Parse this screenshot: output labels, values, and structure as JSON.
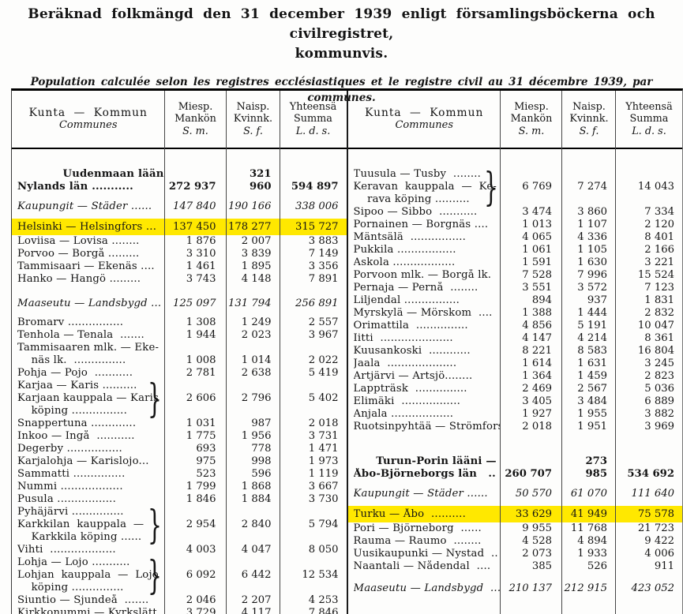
{
  "title": {
    "line1": "Beräknad folkmängd den 31 december 1939 enligt församlingsböckerna och civilregistret,",
    "line2": "kommunvis."
  },
  "subtitle": {
    "line1": "Population calculée selon les registres ecclésiastiques et le registre civil au 31 décembre 1939, par",
    "line2": "communes."
  },
  "highlight_color": "#ffe800",
  "table": {
    "header": {
      "commune": {
        "fi_sv": "Kunta — Kommun",
        "fr": "Communes"
      },
      "male": [
        "Miesp.",
        "Mankön",
        "S. m."
      ],
      "female": [
        "Naisp.",
        "Kvinnk.",
        "S. f."
      ],
      "total": [
        "Yhteensä",
        "Summa",
        "L. d. s."
      ]
    },
    "left_rows": [
      {
        "lines": [
          "            Uudenmaan lääni —",
          "Nylands län ..........."
        ],
        "style": "bold",
        "m": "272 937",
        "f": "321 960",
        "t": "594 897"
      },
      {
        "lines": [
          "Kaupungit — Städer ......"
        ],
        "style": "italic",
        "gap": 9,
        "m": "147 840",
        "f": "190 166",
        "t": "338 006"
      },
      {
        "lines": [
          "Helsinki — Helsingfors ..."
        ],
        "hl": true,
        "gap": 7,
        "m": "137 450",
        "f": "178 277",
        "t": "315 727"
      },
      {
        "lines": [
          "Loviisa — Lovisa ........"
        ],
        "m": "1 876",
        "f": "2 007",
        "t": "3 883"
      },
      {
        "lines": [
          "Porvoo — Borgå ........."
        ],
        "m": "3 310",
        "f": "3 839",
        "t": "7 149"
      },
      {
        "lines": [
          "Tammisaari — Ekenäs ...."
        ],
        "m": "1 461",
        "f": "1 895",
        "t": "3 356"
      },
      {
        "lines": [
          "Hanko — Hangö ........."
        ],
        "m": "3 743",
        "f": "4 148",
        "t": "7 891"
      },
      {
        "lines": [
          "Maaseutu — Landsbygd ..."
        ],
        "style": "italic",
        "gap": 15,
        "m": "125 097",
        "f": "131 794",
        "t": "256 891"
      },
      {
        "lines": [
          "Bromarv ................"
        ],
        "gap": 8,
        "m": "1 308",
        "f": "1 249",
        "t": "2 557"
      },
      {
        "lines": [
          "Tenhola — Tenala  ......."
        ],
        "m": "1 944",
        "f": "2 023",
        "t": "3 967"
      },
      {
        "lines": [
          "Tammisaaren mlk. — Eke-",
          "    näs lk.  ..............."
        ],
        "m": "1 008",
        "f": "1 014",
        "t": "2 022"
      },
      {
        "lines": [
          "Pohja — Pojo  ..........."
        ],
        "m": "2 781",
        "f": "2 638",
        "t": "5 419"
      },
      {
        "lines": [
          "Karjaa — Karis ..........",
          "Karjaan kauppala — Karis",
          "    köping ................"
        ],
        "brace": true,
        "m": "2 606",
        "f": "2 796",
        "t": "5 402"
      },
      {
        "lines": [
          "Snappertuna ............."
        ],
        "m": "1 031",
        "f": "987",
        "t": "2 018"
      },
      {
        "lines": [
          "Inkoo — Ingå  ..........."
        ],
        "m": "1 775",
        "f": "1 956",
        "t": "3 731"
      },
      {
        "lines": [
          "Degerby ................"
        ],
        "m": "693",
        "f": "778",
        "t": "1 471"
      },
      {
        "lines": [
          "Karjalohja — Karislojo..."
        ],
        "m": "975",
        "f": "998",
        "t": "1 973"
      },
      {
        "lines": [
          "Sammatti ..............."
        ],
        "m": "523",
        "f": "596",
        "t": "1 119"
      },
      {
        "lines": [
          "Nummi .................."
        ],
        "m": "1 799",
        "f": "1 868",
        "t": "3 667"
      },
      {
        "lines": [
          "Pusula ................."
        ],
        "m": "1 846",
        "f": "1 884",
        "t": "3 730"
      },
      {
        "lines": [
          "Pyhäjärvi ...............",
          "Karkkilan  kauppala  —",
          "    Karkkila köping ......"
        ],
        "brace": true,
        "m": "2 954",
        "f": "2 840",
        "t": "5 794"
      },
      {
        "lines": [
          "Vihti  ..................."
        ],
        "m": "4 003",
        "f": "4 047",
        "t": "8 050"
      },
      {
        "lines": [
          "Lohja — Lojo ...........",
          "Lohjan  kauppala  —  Lojo",
          "    köping ..............."
        ],
        "brace": true,
        "m": "6 092",
        "f": "6 442",
        "t": "12 534"
      },
      {
        "lines": [
          "Siuntio — Sjundeå  ......."
        ],
        "m": "2 046",
        "f": "2 207",
        "t": "4 253"
      },
      {
        "lines": [
          "Kirkkonummi — Kyrkslätt"
        ],
        "m": "3 729",
        "f": "4 117",
        "t": "7 846"
      }
    ],
    "right_rows": [
      {
        "lines": [
          "Tuusula — Tusby  ........",
          "Keravan  kauppala  —  Ke-",
          "    rava köping .........."
        ],
        "brace": true,
        "m": "6 769",
        "f": "7 274",
        "t": "14 043"
      },
      {
        "lines": [
          "Sipoo — Sibbo  ..........."
        ],
        "m": "3 474",
        "f": "3 860",
        "t": "7 334"
      },
      {
        "lines": [
          "Pornainen — Borgnäs ...."
        ],
        "m": "1 013",
        "f": "1 107",
        "t": "2 120"
      },
      {
        "lines": [
          "Mäntsälä  ................"
        ],
        "m": "4 065",
        "f": "4 336",
        "t": "8 401"
      },
      {
        "lines": [
          "Pukkila ................."
        ],
        "m": "1 061",
        "f": "1 105",
        "t": "2 166"
      },
      {
        "lines": [
          "Askola .................."
        ],
        "m": "1 591",
        "f": "1 630",
        "t": "3 221"
      },
      {
        "lines": [
          "Porvoon mlk. — Borgå lk."
        ],
        "m": "7 528",
        "f": "7 996",
        "t": "15 524"
      },
      {
        "lines": [
          "Pernaja — Pernå  ........"
        ],
        "m": "3 551",
        "f": "3 572",
        "t": "7 123"
      },
      {
        "lines": [
          "Liljendal ................"
        ],
        "m": "894",
        "f": "937",
        "t": "1 831"
      },
      {
        "lines": [
          "Myrskylä — Mörskom  ...."
        ],
        "m": "1 388",
        "f": "1 444",
        "t": "2 832"
      },
      {
        "lines": [
          "Orimattila  ..............."
        ],
        "m": "4 856",
        "f": "5 191",
        "t": "10 047"
      },
      {
        "lines": [
          "Iitti  ....................."
        ],
        "m": "4 147",
        "f": "4 214",
        "t": "8 361"
      },
      {
        "lines": [
          "Kuusankoski  ............"
        ],
        "m": "8 221",
        "f": "8 583",
        "t": "16 804"
      },
      {
        "lines": [
          "Jaala  ...................."
        ],
        "m": "1 614",
        "f": "1 631",
        "t": "3 245"
      },
      {
        "lines": [
          "Artjärvi — Artsjö........"
        ],
        "m": "1 364",
        "f": "1 459",
        "t": "2 823"
      },
      {
        "lines": [
          "Lappträsk  ..............."
        ],
        "m": "2 469",
        "f": "2 567",
        "t": "5 036"
      },
      {
        "lines": [
          "Elimäki  ................."
        ],
        "m": "3 405",
        "f": "3 484",
        "t": "6 889"
      },
      {
        "lines": [
          "Anjala .................."
        ],
        "m": "1 927",
        "f": "1 955",
        "t": "3 882"
      },
      {
        "lines": [
          "Ruotsinpyhtää — Strömfors"
        ],
        "m": "2 018",
        "f": "1 951",
        "t": "3 969"
      },
      {
        "lines": [
          "      Turun-Porin lääni —",
          "Åbo-Björneborgs län   .."
        ],
        "style": "bold",
        "gap": 28,
        "m": "260 707",
        "f": "273 985",
        "t": "534 692"
      },
      {
        "lines": [
          "Kaupungit — Städer ......"
        ],
        "style": "italic",
        "gap": 9,
        "m": "50 570",
        "f": "61 070",
        "t": "111 640"
      },
      {
        "lines": [
          "Turku — Åbo  .........."
        ],
        "hl": true,
        "gap": 7,
        "m": "33 629",
        "f": "41 949",
        "t": "75 578"
      },
      {
        "lines": [
          "Pori — Björneborg  ......"
        ],
        "m": "9 955",
        "f": "11 768",
        "t": "21 723"
      },
      {
        "lines": [
          "Rauma — Raumo  ........"
        ],
        "m": "4 528",
        "f": "4 894",
        "t": "9 422"
      },
      {
        "lines": [
          "Uusikaupunki — Nystad  .."
        ],
        "m": "2 073",
        "f": "1 933",
        "t": "4 006"
      },
      {
        "lines": [
          "Naantali — Nådendal  ...."
        ],
        "m": "385",
        "f": "526",
        "t": "911"
      },
      {
        "lines": [
          "Maaseutu — Landsbygd  ..."
        ],
        "style": "italic",
        "gap": 12,
        "m": "210 137",
        "f": "212 915",
        "t": "423 052"
      }
    ]
  }
}
